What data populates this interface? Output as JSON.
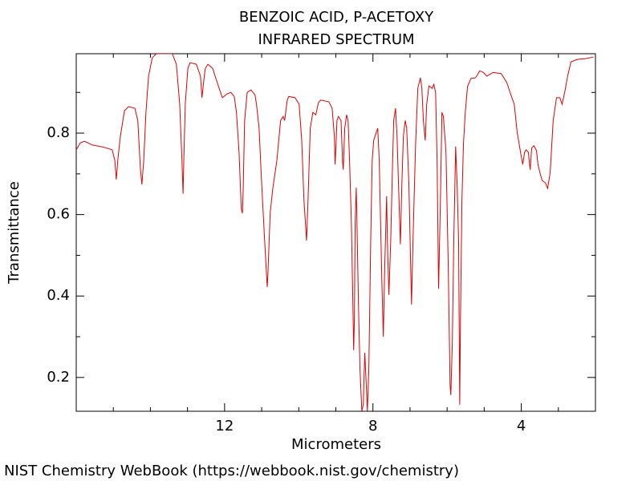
{
  "chart_data": {
    "type": "line",
    "title": "BENZOIC ACID, P-ACETOXY",
    "subtitle": "INFRARED SPECTRUM",
    "x_label": "Micrometers",
    "y_label": "Transmittance",
    "source": "NIST Chemistry WebBook (https://webbook.nist.gov/chemistry)",
    "color": "#e00000",
    "xlim": [
      16,
      2
    ],
    "ylim": [
      0.117,
      0.995
    ],
    "xticks": [
      12,
      8,
      4
    ],
    "yticks": [
      0.2,
      0.4,
      0.6,
      0.8
    ],
    "xminorticks": [
      15,
      14,
      13,
      11,
      10,
      9,
      7,
      6,
      5,
      3
    ],
    "yminorticks": [
      0.3,
      0.5,
      0.7,
      0.9
    ],
    "x": [
      16.0,
      15.89,
      15.78,
      15.57,
      15.24,
      15.03,
      14.96,
      14.92,
      14.88,
      14.81,
      14.7,
      14.59,
      14.42,
      14.34,
      14.27,
      14.23,
      14.18,
      14.12,
      14.05,
      13.95,
      13.84,
      13.62,
      13.41,
      13.3,
      13.21,
      13.15,
      13.12,
      13.1,
      13.06,
      12.99,
      12.93,
      12.76,
      12.65,
      12.61,
      12.56,
      12.52,
      12.45,
      12.32,
      12.22,
      12.06,
      11.94,
      11.83,
      11.74,
      11.68,
      11.61,
      11.55,
      11.52,
      11.5,
      11.46,
      11.39,
      11.29,
      11.18,
      11.14,
      11.07,
      11.01,
      10.92,
      10.85,
      10.83,
      10.77,
      10.7,
      10.59,
      10.49,
      10.42,
      10.38,
      10.31,
      10.27,
      10.1,
      9.99,
      9.92,
      9.86,
      9.79,
      9.75,
      9.69,
      9.62,
      9.54,
      9.47,
      9.41,
      9.19,
      9.1,
      9.04,
      9.02,
      9.0,
      8.97,
      8.93,
      8.86,
      8.82,
      8.8,
      8.76,
      8.71,
      8.67,
      8.63,
      8.58,
      8.54,
      8.52,
      8.5,
      8.48,
      8.45,
      8.43,
      8.39,
      8.35,
      8.3,
      8.26,
      8.22,
      8.19,
      8.15,
      8.11,
      8.06,
      8.02,
      7.98,
      7.91,
      7.87,
      7.83,
      7.76,
      7.72,
      7.68,
      7.63,
      7.61,
      7.57,
      7.52,
      7.48,
      7.44,
      7.39,
      7.35,
      7.31,
      7.26,
      7.22,
      7.18,
      7.13,
      7.09,
      7.03,
      6.96,
      6.92,
      6.85,
      6.79,
      6.72,
      6.68,
      6.64,
      6.59,
      6.55,
      6.49,
      6.4,
      6.36,
      6.31,
      6.27,
      6.23,
      6.18,
      6.14,
      6.1,
      6.03,
      5.97,
      5.92,
      5.9,
      5.86,
      5.82,
      5.77,
      5.73,
      5.69,
      5.66,
      5.64,
      5.6,
      5.56,
      5.51,
      5.45,
      5.36,
      5.23,
      5.12,
      5.02,
      4.93,
      4.76,
      4.54,
      4.39,
      4.28,
      4.19,
      4.11,
      4.02,
      3.96,
      3.91,
      3.87,
      3.81,
      3.76,
      3.72,
      3.66,
      3.59,
      3.55,
      3.5,
      3.44,
      3.35,
      3.29,
      3.22,
      3.14,
      3.05,
      2.96,
      2.9,
      2.83,
      2.75,
      2.66,
      2.49,
      2.27,
      2.05
    ],
    "values": [
      0.759,
      0.776,
      0.78,
      0.771,
      0.765,
      0.759,
      0.733,
      0.686,
      0.733,
      0.792,
      0.855,
      0.865,
      0.861,
      0.831,
      0.713,
      0.674,
      0.733,
      0.851,
      0.94,
      0.985,
      0.995,
      0.995,
      0.995,
      0.969,
      0.871,
      0.733,
      0.651,
      0.733,
      0.871,
      0.959,
      0.973,
      0.969,
      0.94,
      0.887,
      0.93,
      0.959,
      0.969,
      0.959,
      0.93,
      0.887,
      0.896,
      0.9,
      0.89,
      0.851,
      0.753,
      0.615,
      0.603,
      0.654,
      0.831,
      0.9,
      0.906,
      0.894,
      0.871,
      0.812,
      0.694,
      0.536,
      0.422,
      0.458,
      0.605,
      0.664,
      0.733,
      0.831,
      0.841,
      0.831,
      0.881,
      0.89,
      0.887,
      0.871,
      0.782,
      0.635,
      0.536,
      0.635,
      0.812,
      0.851,
      0.845,
      0.875,
      0.881,
      0.877,
      0.861,
      0.792,
      0.723,
      0.763,
      0.831,
      0.841,
      0.831,
      0.733,
      0.71,
      0.812,
      0.845,
      0.831,
      0.733,
      0.576,
      0.379,
      0.267,
      0.34,
      0.576,
      0.666,
      0.576,
      0.379,
      0.222,
      0.118,
      0.133,
      0.261,
      0.202,
      0.118,
      0.222,
      0.536,
      0.733,
      0.782,
      0.802,
      0.812,
      0.733,
      0.438,
      0.3,
      0.477,
      0.645,
      0.536,
      0.403,
      0.536,
      0.694,
      0.831,
      0.861,
      0.792,
      0.674,
      0.527,
      0.674,
      0.792,
      0.831,
      0.812,
      0.674,
      0.379,
      0.536,
      0.772,
      0.91,
      0.936,
      0.91,
      0.831,
      0.782,
      0.871,
      0.916,
      0.91,
      0.92,
      0.9,
      0.733,
      0.418,
      0.635,
      0.851,
      0.841,
      0.753,
      0.477,
      0.182,
      0.157,
      0.281,
      0.536,
      0.767,
      0.674,
      0.536,
      0.133,
      0.34,
      0.635,
      0.772,
      0.851,
      0.914,
      0.934,
      0.936,
      0.953,
      0.949,
      0.94,
      0.949,
      0.946,
      0.924,
      0.894,
      0.871,
      0.802,
      0.753,
      0.723,
      0.753,
      0.759,
      0.753,
      0.71,
      0.763,
      0.769,
      0.757,
      0.723,
      0.704,
      0.684,
      0.678,
      0.664,
      0.704,
      0.831,
      0.887,
      0.887,
      0.871,
      0.9,
      0.94,
      0.975,
      0.981,
      0.983,
      0.987
    ]
  }
}
